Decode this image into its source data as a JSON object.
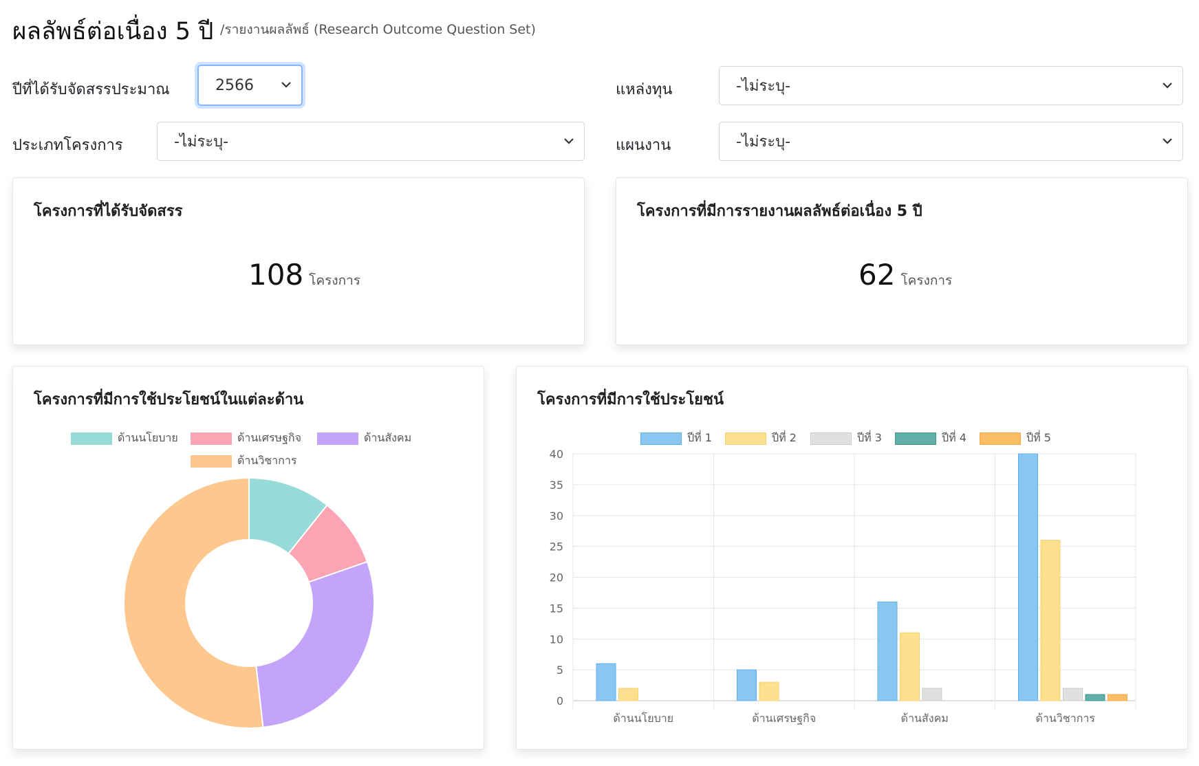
{
  "header": {
    "title": "ผลลัพธ์ต่อเนื่อง 5 ปี",
    "subtitle": "/รายงานผลลัพธ์ (Research Outcome Question Set)"
  },
  "filters": {
    "year_label": "ปีที่ได้รับจัดสรรประมาณ",
    "year_value": "2566",
    "funding_label": "แหล่งทุน",
    "funding_value": "-ไม่ระบุ-",
    "project_type_label": "ประเภทโครงการ",
    "project_type_value": "-ไม่ระบุ-",
    "plan_label": "แผนงาน",
    "plan_value": "-ไม่ระบุ-"
  },
  "cards": {
    "allocated_title": "โครงการที่ได้รับจัดสรร",
    "allocated_count": "108",
    "allocated_unit": "โครงการ",
    "reported_title": "โครงการที่มีการรายงานผลลัพธ์ต่อเนื่อง 5 ปี",
    "reported_count": "62",
    "reported_unit": "โครงการ",
    "donut_title": "โครงการที่มีการใช้ประโยชน์ในแต่ละด้าน",
    "bar_title": "โครงการที่มีการใช้ประโยชน์"
  },
  "chart_data": [
    {
      "type": "pie",
      "variant": "doughnut",
      "categories": [
        "ด้านนโยบาย",
        "ด้านเศรษฐกิจ",
        "ด้านสังคม",
        "ด้านวิชาการ"
      ],
      "values": [
        6,
        5,
        16,
        29
      ],
      "colors": [
        "#96dbd8",
        "#fca4b3",
        "#c4a4fb",
        "#fdc78e"
      ],
      "legend": "top"
    },
    {
      "type": "bar",
      "categories": [
        "ด้านนโยบาย",
        "ด้านเศรษฐกิจ",
        "ด้านสังคม",
        "ด้านวิชาการ"
      ],
      "series": [
        {
          "name": "ปีที่ 1",
          "values": [
            6,
            5,
            16,
            40
          ],
          "color": "#89c6f2",
          "border": "#5eb0ec"
        },
        {
          "name": "ปีที่ 2",
          "values": [
            2,
            3,
            11,
            26
          ],
          "color": "#fde08f",
          "border": "#f8d270"
        },
        {
          "name": "ปีที่ 3",
          "values": [
            0,
            0,
            2,
            2
          ],
          "color": "#e0e0e0",
          "border": "#cccccc"
        },
        {
          "name": "ปีที่ 4",
          "values": [
            0,
            0,
            0,
            1
          ],
          "color": "#5fb0a8",
          "border": "#3f968e"
        },
        {
          "name": "ปีที่ 5",
          "values": [
            0,
            0,
            0,
            1
          ],
          "color": "#fbbd65",
          "border": "#f5a740"
        }
      ],
      "ylim": [
        0,
        40
      ],
      "yticks": [
        0,
        5,
        10,
        15,
        20,
        25,
        30,
        35,
        40
      ],
      "grid": true,
      "legend": "top"
    }
  ]
}
